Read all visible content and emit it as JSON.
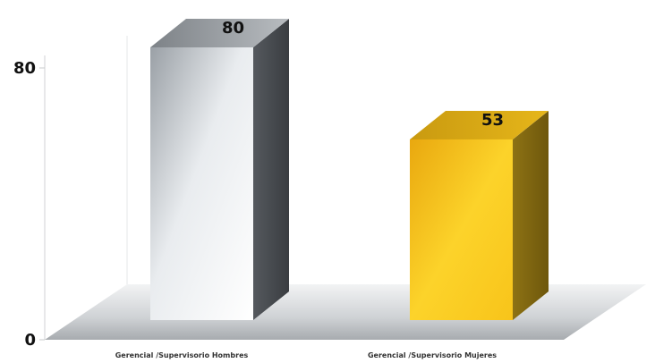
{
  "chart_data": {
    "type": "bar",
    "style": "3d-column",
    "categories": [
      "Gerencial /Supervisorio Hombres",
      "Gerencial /Supervisorio Mujeres"
    ],
    "values": [
      80,
      53
    ],
    "data_labels": [
      "80",
      "53"
    ],
    "colors": [
      "#c9cdd1",
      "#f6c21c"
    ],
    "ylim": [
      0,
      80
    ],
    "yticks": [
      0,
      80
    ],
    "ytick_labels": [
      "0",
      "80"
    ],
    "grid": false,
    "legend": "none",
    "title": "",
    "xlabel": "",
    "ylabel": ""
  }
}
